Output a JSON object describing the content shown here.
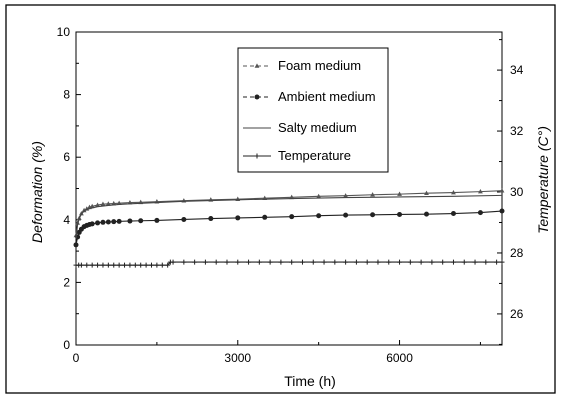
{
  "chart_data": {
    "type": "line",
    "xlabel": "Time  (h)",
    "ylabel": "Deformation (%)",
    "y2label": "Temperature (C°)",
    "xlim": [
      0,
      7900
    ],
    "ylim": [
      0,
      10
    ],
    "y2lim": [
      24.98,
      35.25
    ],
    "xticks": [
      0,
      3000,
      6000
    ],
    "yticks": [
      0,
      2,
      4,
      6,
      8,
      10
    ],
    "y2ticks": [
      26,
      28,
      30,
      32,
      34
    ],
    "grid": false,
    "legend_position": "top-center",
    "series": [
      {
        "name": "Foam medium",
        "axis": "left",
        "marker": "triangle",
        "color": "#555555",
        "x": [
          0,
          30,
          60,
          100,
          150,
          200,
          250,
          300,
          400,
          500,
          600,
          700,
          800,
          1000,
          1200,
          1500,
          2000,
          2500,
          3000,
          3500,
          4000,
          4500,
          5000,
          5500,
          6000,
          6500,
          7000,
          7500,
          7900
        ],
        "y": [
          3.5,
          3.9,
          4.05,
          4.2,
          4.3,
          4.35,
          4.4,
          4.43,
          4.47,
          4.5,
          4.51,
          4.52,
          4.53,
          4.55,
          4.56,
          4.58,
          4.61,
          4.64,
          4.66,
          4.69,
          4.72,
          4.75,
          4.77,
          4.8,
          4.82,
          4.85,
          4.87,
          4.9,
          4.93
        ]
      },
      {
        "name": "Ambient medium",
        "axis": "left",
        "marker": "circle",
        "color": "#222222",
        "x": [
          0,
          30,
          60,
          100,
          150,
          200,
          250,
          300,
          400,
          500,
          600,
          700,
          800,
          1000,
          1200,
          1500,
          2000,
          2500,
          3000,
          3500,
          4000,
          4500,
          5000,
          5500,
          6000,
          6500,
          7000,
          7500,
          7900
        ],
        "y": [
          3.2,
          3.45,
          3.6,
          3.7,
          3.78,
          3.82,
          3.85,
          3.87,
          3.9,
          3.92,
          3.93,
          3.94,
          3.95,
          3.96,
          3.97,
          3.98,
          4.01,
          4.04,
          4.06,
          4.08,
          4.1,
          4.13,
          4.15,
          4.16,
          4.17,
          4.18,
          4.2,
          4.23,
          4.28
        ]
      },
      {
        "name": "Salty medium",
        "axis": "left",
        "marker": "none",
        "color": "#444444",
        "x": [
          0,
          30,
          60,
          100,
          150,
          200,
          300,
          400,
          600,
          800,
          1000,
          1500,
          2000,
          3000,
          4000,
          5000,
          6000,
          7000,
          7900
        ],
        "y": [
          3.4,
          3.85,
          4.05,
          4.18,
          4.28,
          4.33,
          4.38,
          4.42,
          4.46,
          4.49,
          4.51,
          4.55,
          4.59,
          4.64,
          4.68,
          4.71,
          4.73,
          4.75,
          4.78
        ]
      },
      {
        "name": "Temperature",
        "axis": "right",
        "marker": "plus",
        "color": "#222222",
        "x": [
          0,
          50,
          100,
          200,
          300,
          400,
          500,
          600,
          700,
          800,
          900,
          1000,
          1100,
          1200,
          1300,
          1400,
          1500,
          1600,
          1700,
          1750,
          1800,
          2000,
          2200,
          2400,
          2600,
          2800,
          3000,
          3200,
          3400,
          3600,
          3800,
          4000,
          4200,
          4400,
          4600,
          4800,
          5000,
          5200,
          5400,
          5600,
          5800,
          6000,
          6200,
          6400,
          6600,
          6800,
          7000,
          7200,
          7400,
          7600,
          7800,
          7900
        ],
        "y": [
          27.6,
          27.6,
          27.6,
          27.6,
          27.6,
          27.6,
          27.6,
          27.6,
          27.6,
          27.6,
          27.6,
          27.6,
          27.6,
          27.6,
          27.6,
          27.6,
          27.6,
          27.6,
          27.6,
          27.7,
          27.7,
          27.7,
          27.7,
          27.7,
          27.7,
          27.7,
          27.7,
          27.7,
          27.7,
          27.7,
          27.7,
          27.7,
          27.7,
          27.7,
          27.7,
          27.7,
          27.7,
          27.7,
          27.7,
          27.7,
          27.7,
          27.7,
          27.7,
          27.7,
          27.7,
          27.7,
          27.7,
          27.7,
          27.7,
          27.7,
          27.7,
          27.7
        ]
      }
    ]
  }
}
